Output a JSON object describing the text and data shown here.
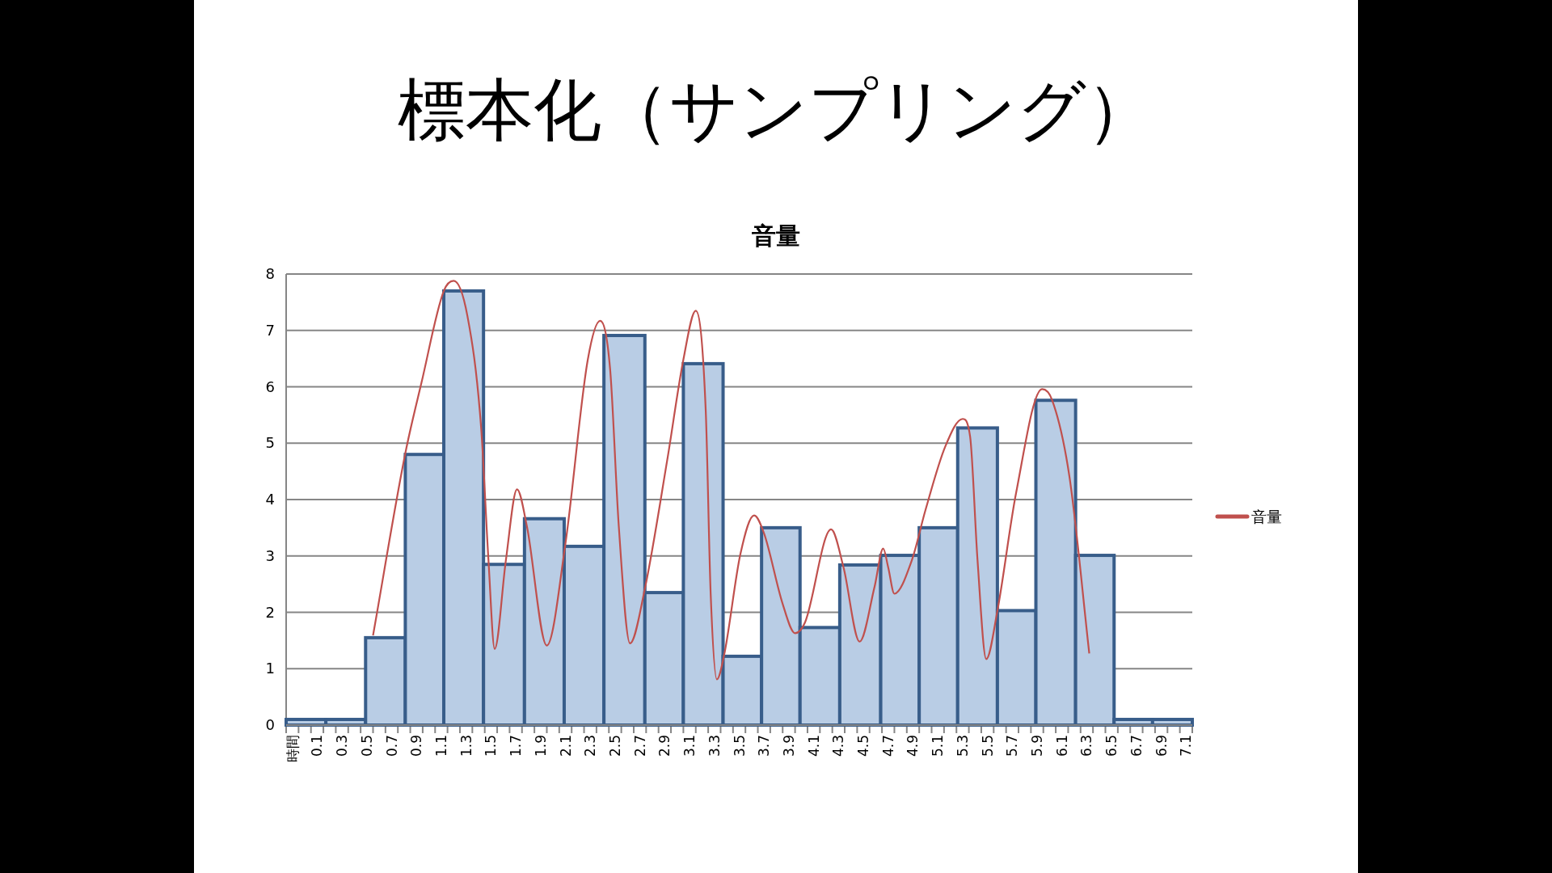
{
  "chart_data": {
    "type": "histogram",
    "title": "標本化（サンプリング）",
    "subtitle": "音量",
    "legend": "right",
    "grid": "y",
    "xlim": [
      -0.15,
      7.15
    ],
    "ylim": [
      0,
      8
    ],
    "yticks": [
      0,
      1,
      2,
      3,
      4,
      5,
      6,
      7,
      8
    ],
    "xticks": [
      {
        "value": -0.1,
        "label": "時間"
      },
      {
        "value": 0.1,
        "label": "0.1"
      },
      {
        "value": 0.3,
        "label": "0.3"
      },
      {
        "value": 0.5,
        "label": "0.5"
      },
      {
        "value": 0.7,
        "label": "0.7"
      },
      {
        "value": 0.9,
        "label": "0.9"
      },
      {
        "value": 1.1,
        "label": "1.1"
      },
      {
        "value": 1.3,
        "label": "1.3"
      },
      {
        "value": 1.5,
        "label": "1.5"
      },
      {
        "value": 1.7,
        "label": "1.7"
      },
      {
        "value": 1.9,
        "label": "1.9"
      },
      {
        "value": 2.1,
        "label": "2.1"
      },
      {
        "value": 2.3,
        "label": "2.3"
      },
      {
        "value": 2.5,
        "label": "2.5"
      },
      {
        "value": 2.7,
        "label": "2.7"
      },
      {
        "value": 2.9,
        "label": "2.9"
      },
      {
        "value": 3.1,
        "label": "3.1"
      },
      {
        "value": 3.3,
        "label": "3.3"
      },
      {
        "value": 3.5,
        "label": "3.5"
      },
      {
        "value": 3.7,
        "label": "3.7"
      },
      {
        "value": 3.9,
        "label": "3.9"
      },
      {
        "value": 4.1,
        "label": "4.1"
      },
      {
        "value": 4.3,
        "label": "4.3"
      },
      {
        "value": 4.5,
        "label": "4.5"
      },
      {
        "value": 4.7,
        "label": "4.7"
      },
      {
        "value": 4.9,
        "label": "4.9"
      },
      {
        "value": 5.1,
        "label": "5.1"
      },
      {
        "value": 5.3,
        "label": "5.3"
      },
      {
        "value": 5.5,
        "label": "5.5"
      },
      {
        "value": 5.7,
        "label": "5.7"
      },
      {
        "value": 5.9,
        "label": "5.9"
      },
      {
        "value": 6.1,
        "label": "6.1"
      },
      {
        "value": 6.3,
        "label": "6.3"
      },
      {
        "value": 6.5,
        "label": "6.5"
      },
      {
        "value": 6.7,
        "label": "6.7"
      },
      {
        "value": 6.9,
        "label": "6.9"
      },
      {
        "value": 7.1,
        "label": "7.1"
      },
      {
        "value": -0.15,
        "label": null
      },
      {
        "value": -0.05,
        "label": null
      },
      {
        "value": 0.05,
        "label": null
      },
      {
        "value": 0.15,
        "label": null
      },
      {
        "value": 0.25,
        "label": null
      },
      {
        "value": 0.35,
        "label": null
      },
      {
        "value": 0.45,
        "label": null
      },
      {
        "value": 0.55,
        "label": null
      },
      {
        "value": 0.65,
        "label": null
      },
      {
        "value": 0.75,
        "label": null
      },
      {
        "value": 0.85,
        "label": null
      },
      {
        "value": 0.95,
        "label": null
      },
      {
        "value": 1.05,
        "label": null
      },
      {
        "value": 1.15,
        "label": null
      },
      {
        "value": 1.25,
        "label": null
      },
      {
        "value": 1.35,
        "label": null
      },
      {
        "value": 1.45,
        "label": null
      },
      {
        "value": 1.55,
        "label": null
      },
      {
        "value": 1.65,
        "label": null
      },
      {
        "value": 1.75,
        "label": null
      },
      {
        "value": 1.85,
        "label": null
      },
      {
        "value": 1.95,
        "label": null
      },
      {
        "value": 2.05,
        "label": null
      },
      {
        "value": 2.15,
        "label": null
      },
      {
        "value": 2.25,
        "label": null
      },
      {
        "value": 2.35,
        "label": null
      },
      {
        "value": 2.45,
        "label": null
      },
      {
        "value": 2.55,
        "label": null
      },
      {
        "value": 2.65,
        "label": null
      },
      {
        "value": 2.75,
        "label": null
      },
      {
        "value": 2.85,
        "label": null
      },
      {
        "value": 2.95,
        "label": null
      },
      {
        "value": 3.05,
        "label": null
      },
      {
        "value": 3.15,
        "label": null
      },
      {
        "value": 3.25,
        "label": null
      },
      {
        "value": 3.35,
        "label": null
      },
      {
        "value": 3.45,
        "label": null
      },
      {
        "value": 3.55,
        "label": null
      },
      {
        "value": 3.65,
        "label": null
      },
      {
        "value": 3.75,
        "label": null
      },
      {
        "value": 3.85,
        "label": null
      },
      {
        "value": 3.95,
        "label": null
      },
      {
        "value": 4.05,
        "label": null
      },
      {
        "value": 4.15,
        "label": null
      },
      {
        "value": 4.25,
        "label": null
      },
      {
        "value": 4.35,
        "label": null
      },
      {
        "value": 4.45,
        "label": null
      },
      {
        "value": 4.55,
        "label": null
      },
      {
        "value": 4.65,
        "label": null
      },
      {
        "value": 4.75,
        "label": null
      },
      {
        "value": 4.85,
        "label": null
      },
      {
        "value": 4.95,
        "label": null
      },
      {
        "value": 5.05,
        "label": null
      },
      {
        "value": 5.15,
        "label": null
      },
      {
        "value": 5.25,
        "label": null
      },
      {
        "value": 5.35,
        "label": null
      },
      {
        "value": 5.45,
        "label": null
      },
      {
        "value": 5.55,
        "label": null
      },
      {
        "value": 5.65,
        "label": null
      },
      {
        "value": 5.75,
        "label": null
      },
      {
        "value": 5.85,
        "label": null
      },
      {
        "value": 5.95,
        "label": null
      },
      {
        "value": 6.05,
        "label": null
      },
      {
        "value": 6.15,
        "label": null
      },
      {
        "value": 6.25,
        "label": null
      },
      {
        "value": 6.35,
        "label": null
      },
      {
        "value": 6.45,
        "label": null
      },
      {
        "value": 6.55,
        "label": null
      },
      {
        "value": 6.65,
        "label": null
      },
      {
        "value": 6.75,
        "label": null
      },
      {
        "value": 6.85,
        "label": null
      },
      {
        "value": 6.95,
        "label": null
      },
      {
        "value": 7.05,
        "label": null
      },
      {
        "value": 7.15,
        "label": null
      }
    ],
    "bins": [
      -0.15,
      0.17,
      0.49,
      0.81,
      1.12,
      1.44,
      1.77,
      2.09,
      2.41,
      2.74,
      3.05,
      3.37,
      3.68,
      3.99,
      4.31,
      4.64,
      4.95,
      5.26,
      5.58,
      5.89,
      6.21,
      6.52,
      6.83,
      7.15
    ],
    "values": [
      0.1,
      0.1,
      1.55,
      4.8,
      7.7,
      2.85,
      3.66,
      3.17,
      6.91,
      2.35,
      6.41,
      1.22,
      3.5,
      1.73,
      2.84,
      3.01,
      3.5,
      5.27,
      2.03,
      5.76,
      3.01,
      0.1,
      0.1
    ],
    "color": "#b9cde5",
    "series": [
      {
        "type": "line",
        "name": "音量",
        "color": "#c0504d",
        "x": [
          0.55,
          0.81,
          0.94,
          1.12,
          1.2,
          1.31,
          1.42,
          1.48,
          1.53,
          1.62,
          1.71,
          1.79,
          1.95,
          2.1,
          2.28,
          2.38,
          2.46,
          2.53,
          2.62,
          2.74,
          2.92,
          3.05,
          3.15,
          3.23,
          3.27,
          3.32,
          3.38,
          3.51,
          3.62,
          3.7,
          3.85,
          3.95,
          4.03,
          4.24,
          4.34,
          4.47,
          4.59,
          4.66,
          4.7,
          4.75,
          4.89,
          5.0,
          5.16,
          5.3,
          5.36,
          5.42,
          5.49,
          5.58,
          5.73,
          5.94,
          6.02,
          6.16,
          6.32
        ],
        "values": [
          1.59,
          4.82,
          6.07,
          7.7,
          7.88,
          7.26,
          5.3,
          2.92,
          1.35,
          2.92,
          4.18,
          3.52,
          1.41,
          3.22,
          6.48,
          7.17,
          6.31,
          3.52,
          1.45,
          2.42,
          4.7,
          6.48,
          7.35,
          5.59,
          2.33,
          0.81,
          1.26,
          3.04,
          3.72,
          3.4,
          2.15,
          1.63,
          1.82,
          3.47,
          2.8,
          1.48,
          2.45,
          3.13,
          2.8,
          2.33,
          2.92,
          3.81,
          4.94,
          5.43,
          5.12,
          2.92,
          1.17,
          2.03,
          4.11,
          5.96,
          5.77,
          4.41,
          1.27
        ]
      }
    ]
  }
}
